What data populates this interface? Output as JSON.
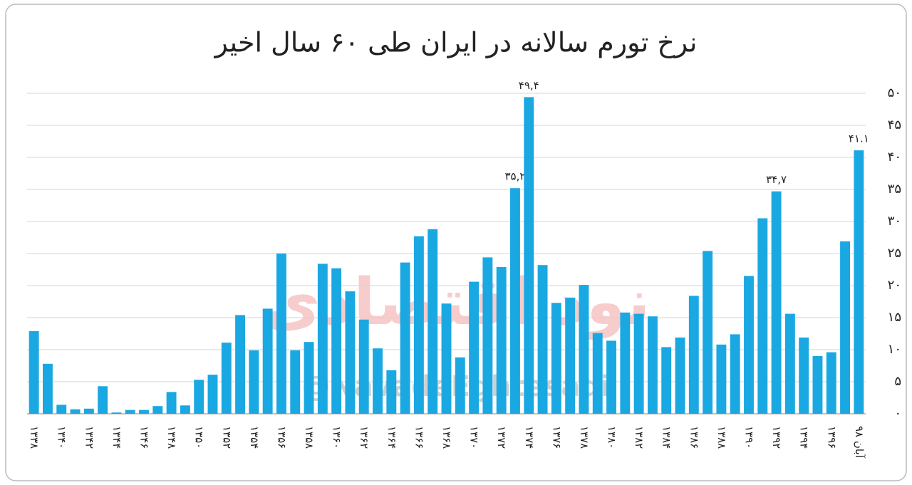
{
  "chart_data": {
    "type": "bar",
    "title": "نرخ تورم سالانه در ایران طی ۶۰ سال اخیر",
    "watermark": [
      "نود اقتصادی",
      "@NavadeEghtesadi"
    ],
    "color": "#1aa8e2",
    "grid": true,
    "categories": [
      "۱۳۳۸",
      null,
      "۱۳۴۰",
      null,
      "۱۳۴۲",
      null,
      "۱۳۴۴",
      null,
      "۱۳۴۶",
      null,
      "۱۳۴۸",
      null,
      "۱۳۵۰",
      null,
      "۱۳۵۲",
      null,
      "۱۳۵۴",
      null,
      "۱۳۵۶",
      null,
      "۱۳۵۸",
      null,
      "۱۳۶۰",
      null,
      "۱۳۶۲",
      null,
      "۱۳۶۴",
      null,
      "۱۳۶۶",
      null,
      "۱۳۶۸",
      null,
      "۱۳۷۰",
      null,
      "۱۳۷۲",
      null,
      "۱۳۷۴",
      null,
      "۱۳۷۶",
      null,
      "۱۳۷۸",
      null,
      "۱۳۸۰",
      null,
      "۱۳۸۲",
      null,
      "۱۳۸۴",
      null,
      "۱۳۸۶",
      null,
      "۱۳۸۸",
      null,
      "۱۳۹۰",
      null,
      "۱۳۹۲",
      null,
      "۱۳۹۴",
      null,
      "۱۳۹۶",
      null,
      "آبان ۹۸"
    ],
    "values": [
      12.9,
      7.8,
      1.4,
      0.7,
      0.8,
      4.3,
      0.2,
      0.6,
      0.6,
      1.2,
      3.4,
      1.3,
      5.3,
      6.1,
      11.1,
      15.4,
      9.9,
      16.4,
      25.0,
      9.9,
      11.2,
      23.4,
      22.7,
      19.1,
      14.7,
      10.2,
      6.8,
      23.6,
      27.7,
      28.8,
      17.2,
      8.8,
      20.6,
      24.4,
      22.9,
      35.2,
      49.4,
      23.2,
      17.3,
      18.1,
      20.1,
      12.6,
      11.4,
      15.8,
      15.6,
      15.2,
      10.4,
      11.9,
      18.4,
      25.4,
      10.8,
      12.4,
      21.5,
      30.5,
      34.7,
      15.6,
      11.9,
      9.0,
      9.6,
      26.9,
      41.1
    ],
    "value_labels": [
      null,
      null,
      null,
      null,
      null,
      null,
      null,
      null,
      null,
      null,
      null,
      null,
      null,
      null,
      null,
      null,
      null,
      null,
      null,
      null,
      null,
      null,
      null,
      null,
      null,
      null,
      null,
      null,
      null,
      null,
      null,
      null,
      null,
      null,
      null,
      "۳۵,۲",
      "۴۹,۴",
      null,
      null,
      null,
      null,
      null,
      null,
      null,
      null,
      null,
      null,
      null,
      null,
      null,
      null,
      null,
      null,
      null,
      "۳۴,۷",
      null,
      null,
      null,
      null,
      null,
      "۴۱.۱"
    ],
    "ylim": [
      0,
      50
    ],
    "yticks": [
      {
        "value": 0,
        "label": "۰"
      },
      {
        "value": 5,
        "label": "۵"
      },
      {
        "value": 10,
        "label": "۱۰"
      },
      {
        "value": 15,
        "label": "۱۵"
      },
      {
        "value": 20,
        "label": "۲۰"
      },
      {
        "value": 25,
        "label": "۲۵"
      },
      {
        "value": 30,
        "label": "۳۰"
      },
      {
        "value": 35,
        "label": "۳۵"
      },
      {
        "value": 40,
        "label": "۴۰"
      },
      {
        "value": 45,
        "label": "۴۵"
      },
      {
        "value": 50,
        "label": "۵۰"
      }
    ]
  }
}
